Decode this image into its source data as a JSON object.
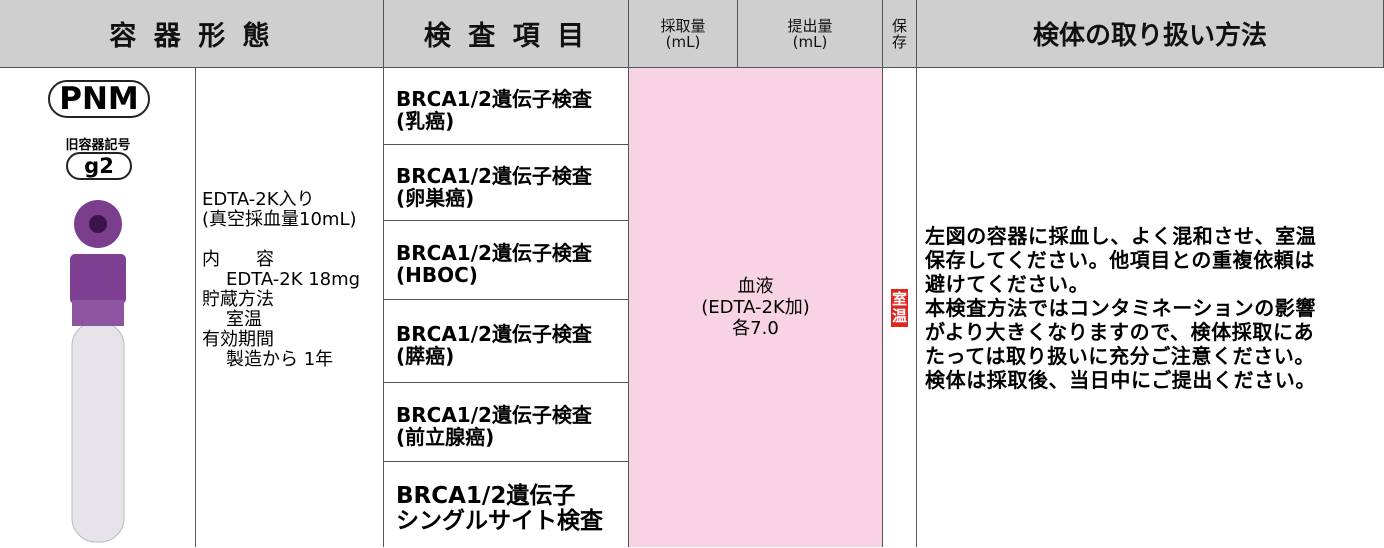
{
  "header": {
    "container": "容 器 形 態",
    "test_items": "検 査 項 目",
    "collection_volume": [
      "採取量",
      "(mL)"
    ],
    "submission_volume": [
      "提出量",
      "(mL)"
    ],
    "storage": [
      "保",
      "存"
    ],
    "handling": "検体の取り扱い方法"
  },
  "container": {
    "code": "PNM",
    "old_code_label": "旧容器記号",
    "old_code": "g2",
    "intro": [
      "EDTA-2K入り",
      "(真空採血量10mL)"
    ],
    "items": [
      {
        "label": "内　　容",
        "value": "EDTA-2K 18mg"
      },
      {
        "label": "貯蔵方法",
        "value": "室温"
      },
      {
        "label": "有効期間",
        "value": "製造から 1年"
      }
    ]
  },
  "tests": [
    [
      "BRCA1/2遺伝子検査",
      "(乳癌)"
    ],
    [
      "BRCA1/2遺伝子検査",
      "(卵巣癌)"
    ],
    [
      "BRCA1/2遺伝子検査",
      "(HBOC)"
    ],
    [
      "BRCA1/2遺伝子検査",
      "(膵癌)"
    ],
    [
      "BRCA1/2遺伝子検査",
      "(前立腺癌)"
    ],
    [
      "BRCA1/2遺伝子",
      "シングルサイト検査"
    ]
  ],
  "specimen": [
    "血液",
    "(EDTA-2K加)",
    "各7.0"
  ],
  "storage": [
    "室",
    "温"
  ],
  "handling": [
    "左図の容器に採血し、よく混和させ、室温",
    "保存してください。他項目との重複依頼は",
    "避けてください。",
    "本検査方法ではコンタミネーションの影響",
    "がより大きくなりますので、検体採取にあ",
    "たっては取り扱いに充分ご注意ください。",
    "検体は採取後、当日中にご提出ください。"
  ]
}
